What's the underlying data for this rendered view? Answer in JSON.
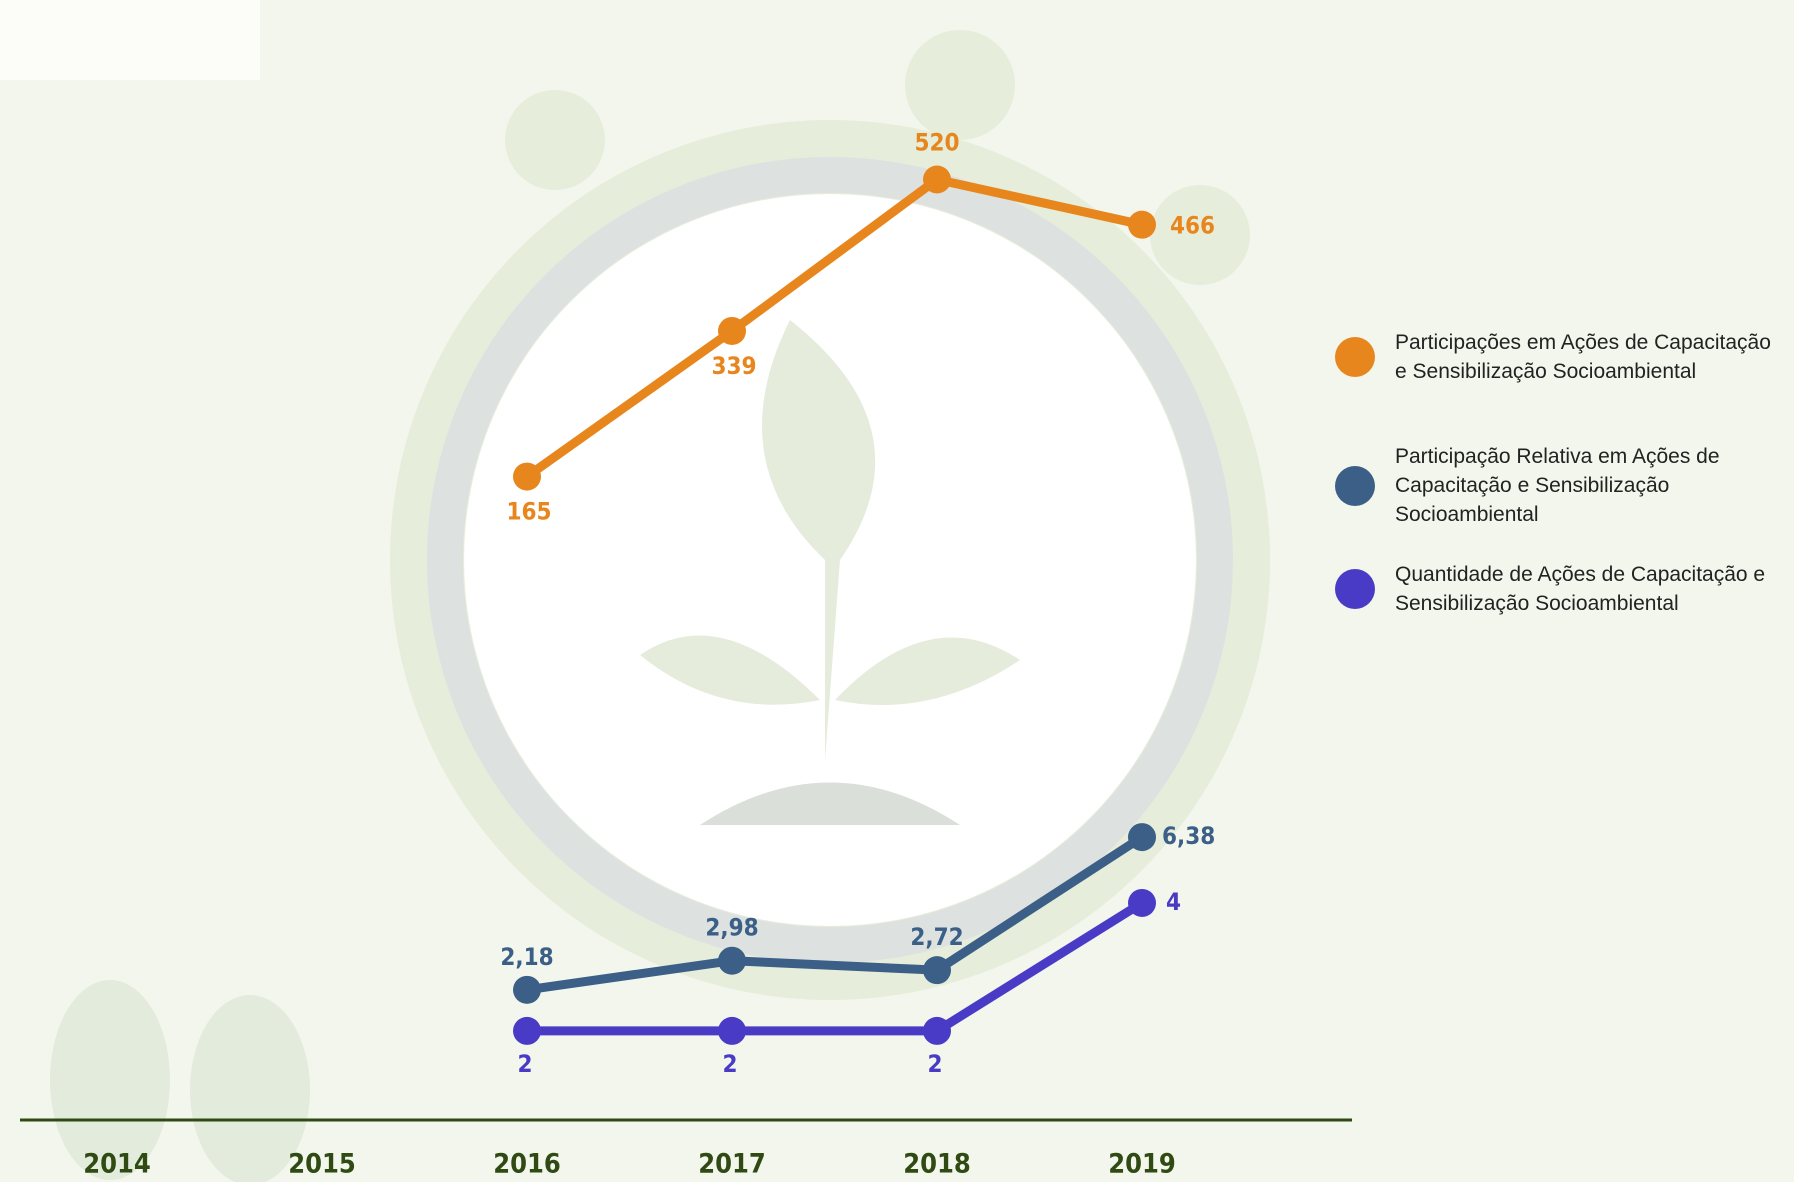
{
  "chart_data": {
    "type": "line",
    "categories": [
      "2014",
      "2015",
      "2016",
      "2017",
      "2018",
      "2019"
    ],
    "series": [
      {
        "name": "Participações em Ações de Capacitação e Sensibilização Socioambiental",
        "color": "#e8861e",
        "values": [
          null,
          null,
          165,
          339,
          520,
          466
        ],
        "ylim": [
          -580,
          615
        ]
      },
      {
        "name": "Participação Relativa em Ações de Capacitação e Sensibilização Socioambiental",
        "color": "#3b5f86",
        "values": [
          null,
          null,
          2.18,
          2.98,
          2.72,
          6.38
        ],
        "value_labels": [
          null,
          null,
          "2,18",
          "2,98",
          "2,72",
          "6,38"
        ],
        "ylim": [
          -0.85,
          26.65
        ]
      },
      {
        "name": "Quantidade de Ações de Capacitação e Sensibilização Socioambiental",
        "color": "#4a3bc6",
        "values": [
          null,
          null,
          2,
          2,
          2,
          4
        ],
        "ylim": [
          0.92,
          16.55
        ]
      }
    ]
  }
}
